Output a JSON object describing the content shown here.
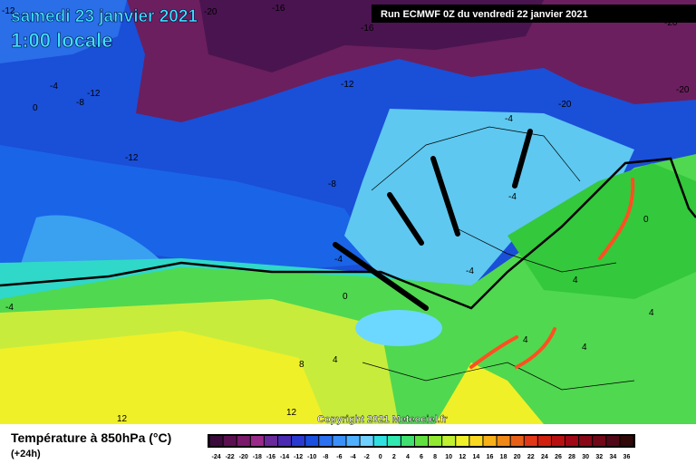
{
  "header": {
    "title": "samedi 23 janvier 2021",
    "time": "1:00 locale",
    "run": "Run ECMWF 0Z du vendredi 22 janvier 2021",
    "copyright": "Copyright 2021 Meteociel.fr"
  },
  "map_labels": [
    "-12",
    "-20",
    "-16",
    "-16",
    "-20",
    "-12",
    "-8",
    "-4",
    "0",
    "-12",
    "-20",
    "-20",
    "-12",
    "-8",
    "-4",
    "-4",
    "-4",
    "-4",
    "0",
    "-4",
    "0",
    "4",
    "4",
    "8",
    "4",
    "12",
    "12",
    "4",
    "4"
  ],
  "legend": {
    "title": "Température à 850hPa (°C)",
    "subtitle": "(+24h)",
    "labels": [
      -24,
      -22,
      -20,
      -18,
      -16,
      -14,
      -12,
      -10,
      -8,
      -6,
      -4,
      -2,
      0,
      2,
      4,
      6,
      8,
      10,
      12,
      14,
      16,
      18,
      20,
      22,
      24,
      26,
      28,
      30,
      32,
      34,
      36
    ],
    "colors": [
      "#3a0a3a",
      "#5a1050",
      "#7a1a6a",
      "#9a2a8a",
      "#6a2a9a",
      "#4a2ab0",
      "#2a3ad0",
      "#1a4fe0",
      "#2a70f0",
      "#3a90f8",
      "#50b0ff",
      "#70d0ff",
      "#30e0e0",
      "#30e8b0",
      "#40e070",
      "#60e040",
      "#90e830",
      "#c0f030",
      "#f0f028",
      "#f8d820",
      "#f8b018",
      "#f08818",
      "#e86018",
      "#e03818",
      "#d02010",
      "#b81010",
      "#a00818",
      "#880818",
      "#700818",
      "#500818",
      "#300808"
    ]
  }
}
